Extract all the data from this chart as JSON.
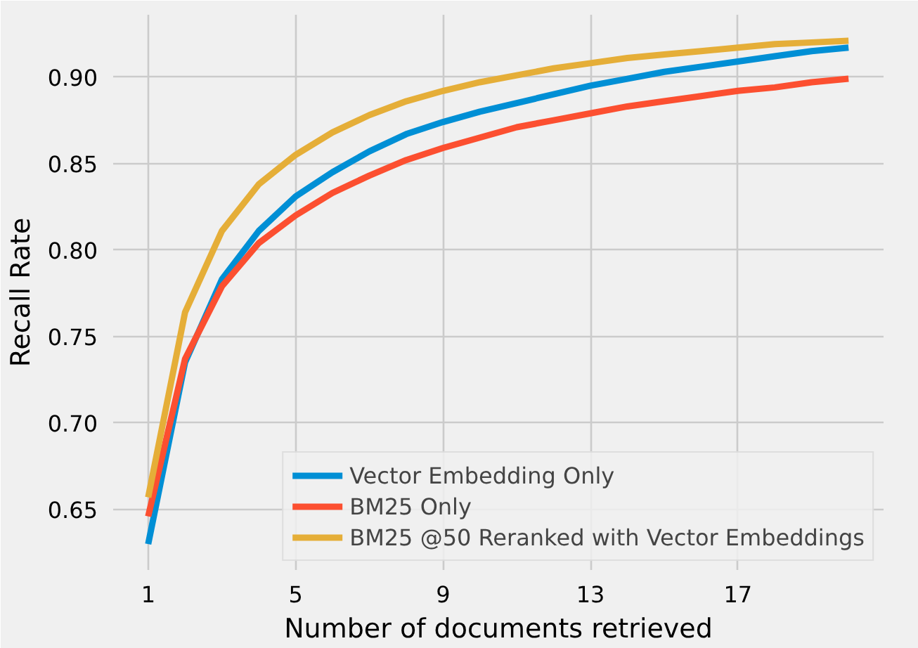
{
  "chart_data": {
    "type": "line",
    "xlabel": "Number of documents retrieved",
    "ylabel": "Recall Rate",
    "x": [
      1,
      2,
      3,
      4,
      5,
      6,
      7,
      8,
      9,
      10,
      11,
      12,
      13,
      14,
      15,
      16,
      17,
      18,
      19,
      20
    ],
    "xlim": [
      0.05,
      20.95
    ],
    "xticks": [
      1,
      5,
      9,
      13,
      17
    ],
    "ylim": [
      0.615,
      0.936
    ],
    "yticks": [
      {
        "value": 0.65,
        "label": "0.65"
      },
      {
        "value": 0.7,
        "label": "0.70"
      },
      {
        "value": 0.75,
        "label": "0.75"
      },
      {
        "value": 0.8,
        "label": "0.80"
      },
      {
        "value": 0.85,
        "label": "0.85"
      },
      {
        "value": 0.9,
        "label": "0.90"
      }
    ],
    "grid": true,
    "legend": "bottom right",
    "line_style": "solid",
    "marker": "none",
    "series": [
      {
        "name": "Vector Embedding Only",
        "color": "#008fd5",
        "values": [
          0.63,
          0.735,
          0.783,
          0.811,
          0.831,
          0.845,
          0.857,
          0.867,
          0.874,
          0.88,
          0.885,
          0.89,
          0.895,
          0.899,
          0.903,
          0.906,
          0.909,
          0.912,
          0.915,
          0.917
        ]
      },
      {
        "name": "BM25 Only",
        "color": "#fc4f30",
        "values": [
          0.646,
          0.737,
          0.779,
          0.804,
          0.82,
          0.833,
          0.843,
          0.852,
          0.859,
          0.865,
          0.871,
          0.875,
          0.879,
          0.883,
          0.886,
          0.889,
          0.892,
          0.894,
          0.897,
          0.899
        ]
      },
      {
        "name": "BM25 @50 Reranked with Vector Embeddings",
        "color": "#e5ae38",
        "values": [
          0.657,
          0.764,
          0.811,
          0.838,
          0.855,
          0.868,
          0.878,
          0.886,
          0.892,
          0.897,
          0.901,
          0.905,
          0.908,
          0.911,
          0.913,
          0.915,
          0.917,
          0.919,
          0.92,
          0.921
        ]
      }
    ]
  }
}
